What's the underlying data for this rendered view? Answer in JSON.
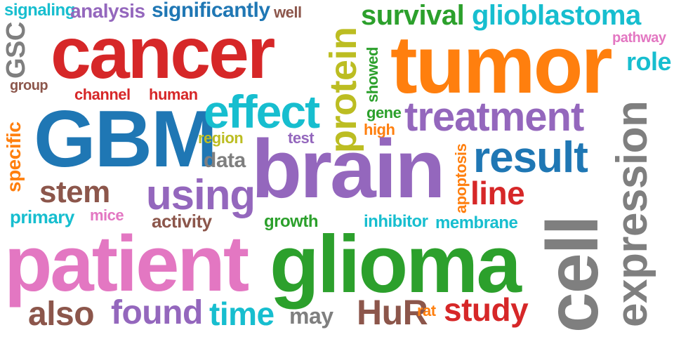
{
  "palette": {
    "red": "#d62728",
    "orange": "#ff7f0e",
    "green": "#2ca02c",
    "blue": "#1f77b4",
    "purple": "#9467bd",
    "pink": "#e377c2",
    "gray": "#7f7f7f",
    "brown": "#8c564b",
    "olive": "#bcbd22",
    "cyan": "#17becf"
  },
  "words": {
    "signaling": "signaling",
    "analysis": "analysis",
    "significantly": "significantly",
    "well": "well",
    "protein": "protein",
    "survival": "survival",
    "glioblastoma": "glioblastoma",
    "gsc": "GSC",
    "cancer": "cancer",
    "tumor": "tumor",
    "pathway": "pathway",
    "role": "role",
    "group": "group",
    "showed": "showed",
    "channel": "channel",
    "human": "human",
    "expression": "expression",
    "specific": "specific",
    "gbm": "GBM",
    "effect": "effect",
    "gene": "gene",
    "treatment": "treatment",
    "region": "region",
    "high": "high",
    "test": "test",
    "data": "data",
    "apoptosis": "apoptosis",
    "result": "result",
    "brain": "brain",
    "stem": "stem",
    "using": "using",
    "line": "line",
    "primary": "primary",
    "mice": "mice",
    "activity": "activity",
    "growth": "growth",
    "inhibitor": "inhibitor",
    "membrane": "membrane",
    "cell": "cell",
    "patient": "patient",
    "glioma": "glioma",
    "also": "also",
    "found": "found",
    "time": "time",
    "may": "may",
    "hur": "HuR",
    "rat": "rat",
    "study": "study"
  }
}
